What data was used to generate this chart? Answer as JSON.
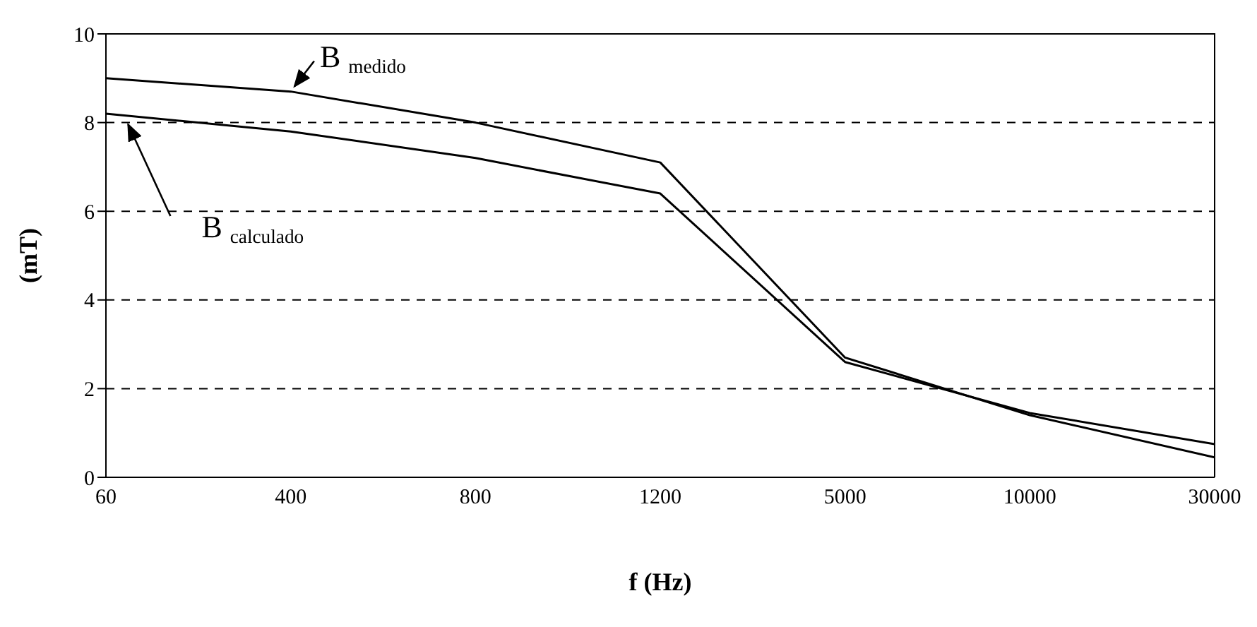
{
  "chart_data": {
    "type": "line",
    "xlabel": "f (Hz)",
    "ylabel": "(mT)",
    "categories": [
      "60",
      "400",
      "800",
      "1200",
      "5000",
      "10000",
      "30000"
    ],
    "series": [
      {
        "name": "B $_{medido}$",
        "color": "#000000",
        "values": [
          9.0,
          8.7,
          8.0,
          7.1,
          2.7,
          1.4,
          0.45
        ]
      },
      {
        "name": "B $_{calculado}$",
        "color": "#000000",
        "values": [
          8.2,
          7.8,
          7.2,
          6.4,
          2.6,
          1.45,
          0.75
        ]
      }
    ],
    "ylim": [
      0,
      10
    ],
    "yticks": [
      0,
      2,
      4,
      6,
      8,
      10
    ],
    "grid": "y",
    "legend": "top left",
    "marker": "none",
    "line_style": "solid"
  }
}
